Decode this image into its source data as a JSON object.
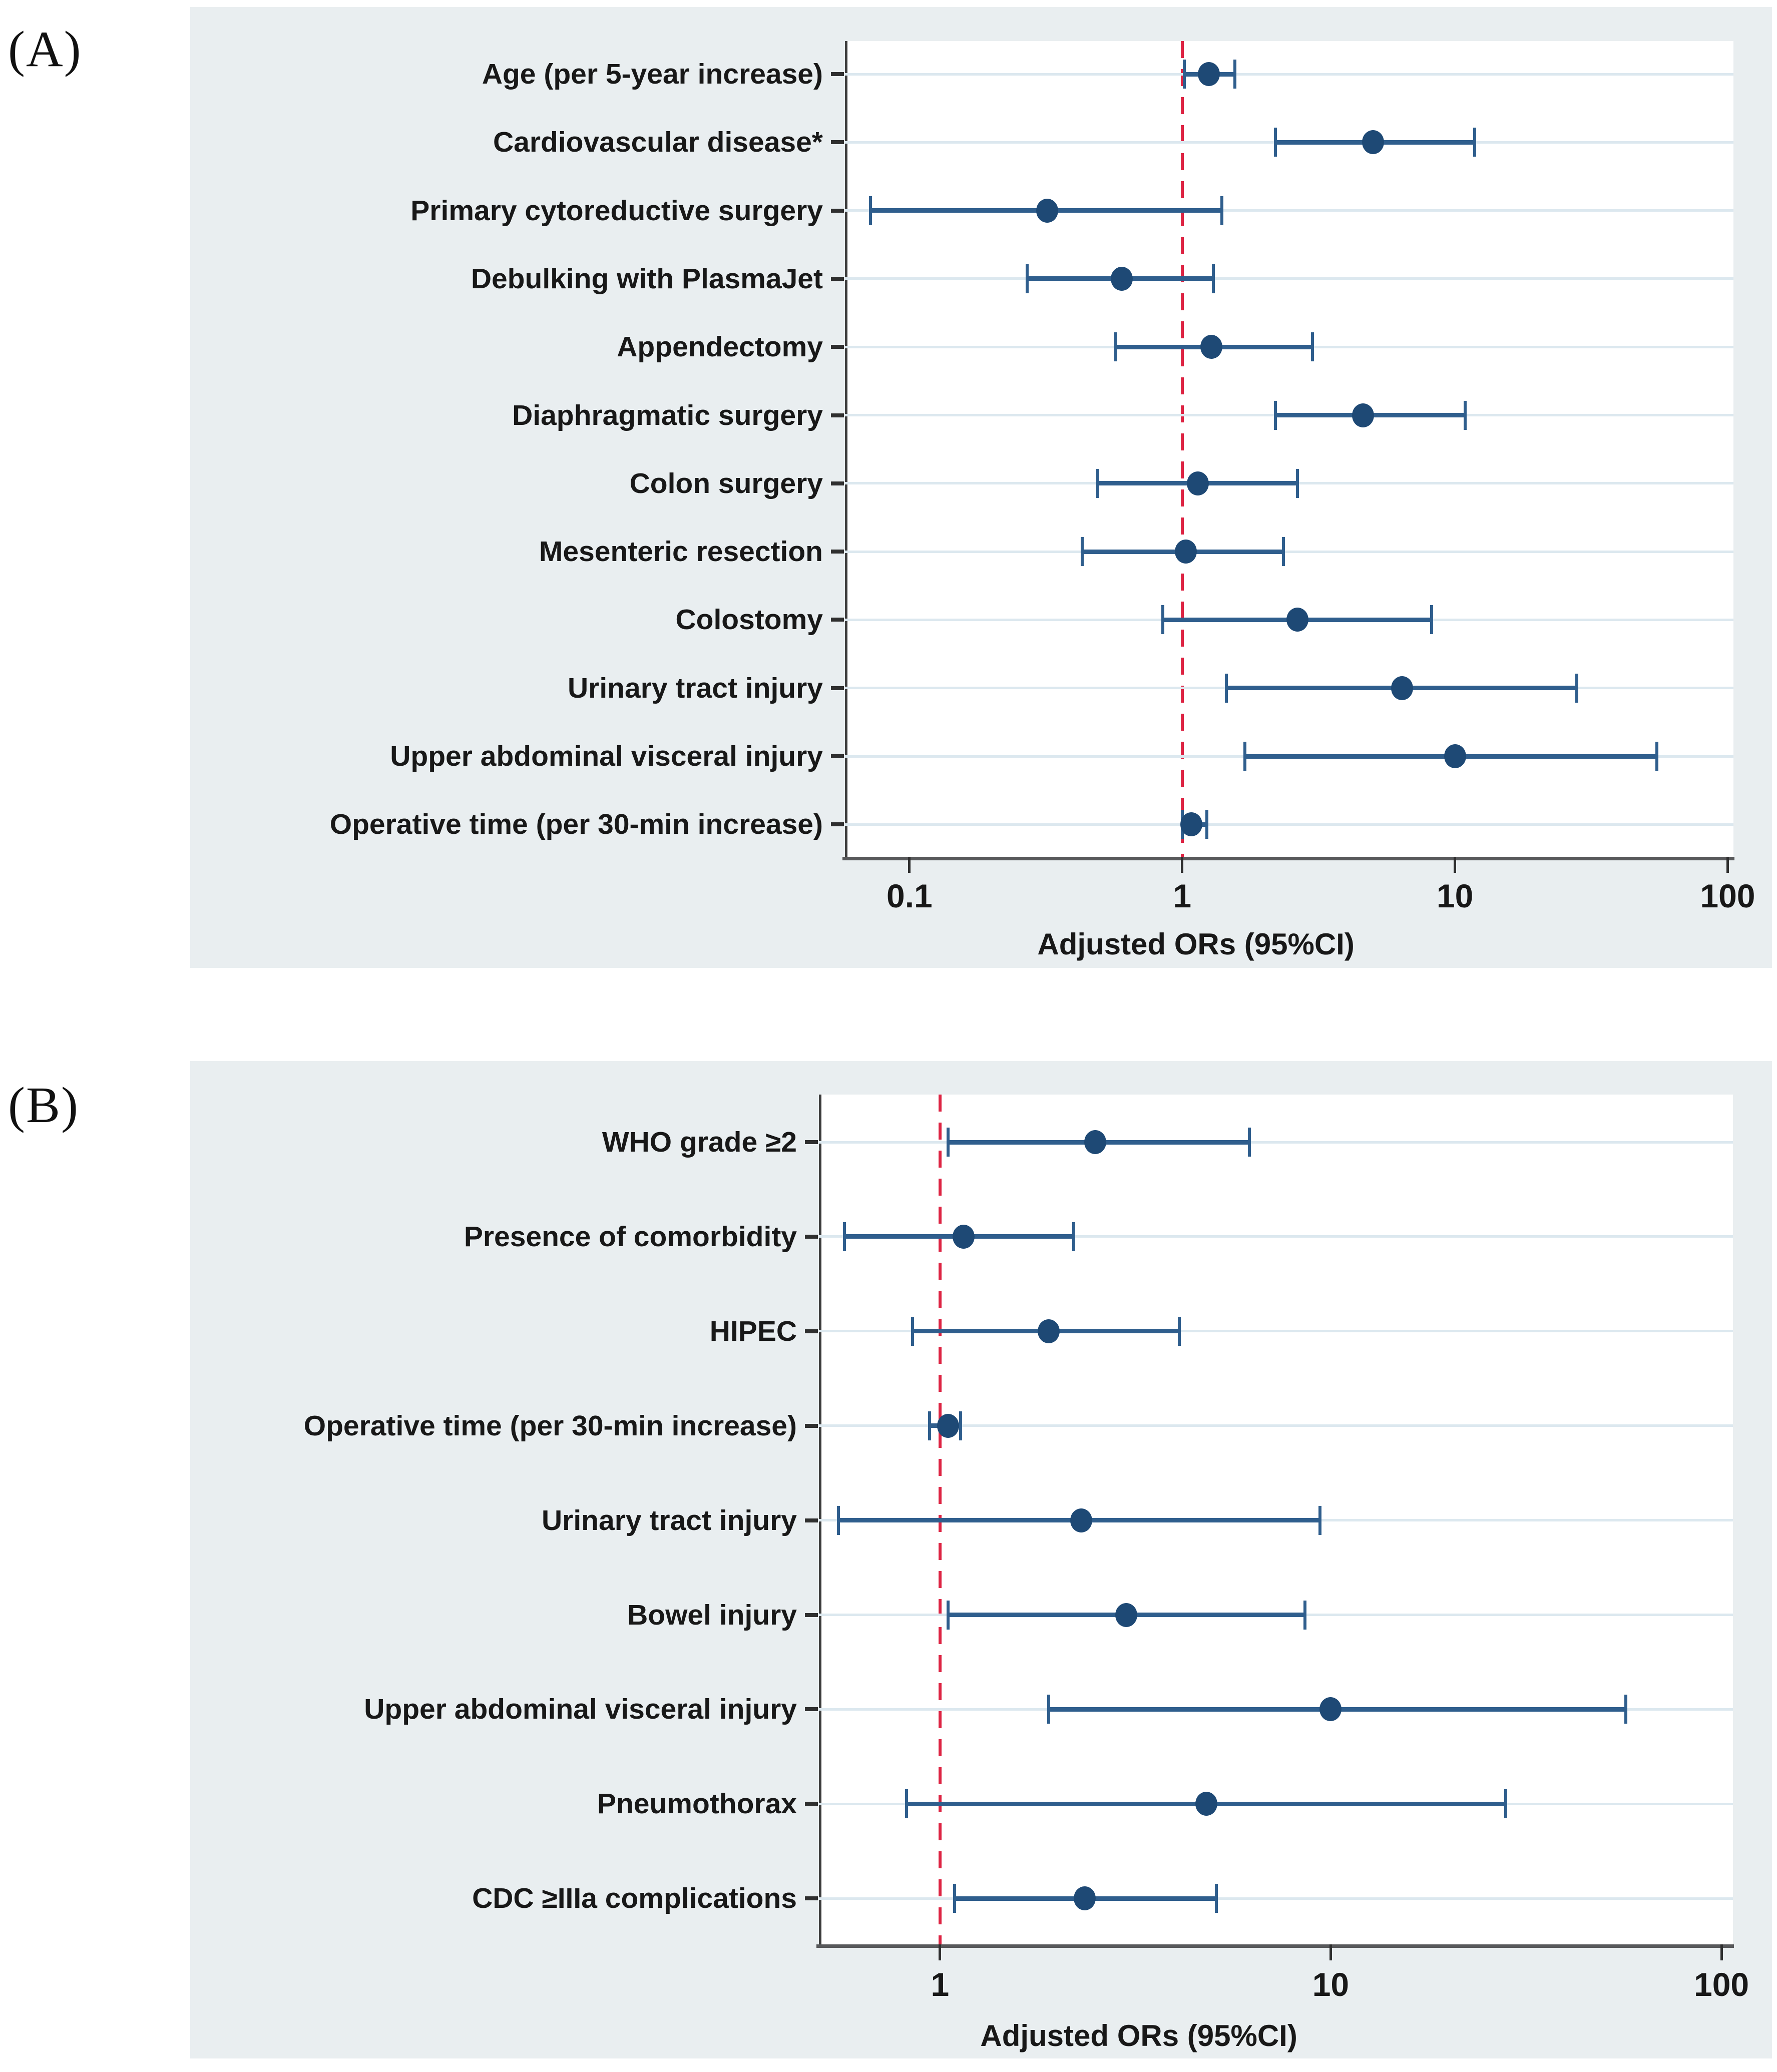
{
  "figure": {
    "panel_a_letter": "(A)",
    "panel_b_letter": "(B)"
  },
  "colors": {
    "panel_background": "#e9eef0",
    "plot_background": "#ffffff",
    "marker": "#1e4975",
    "ci_line": "#2f5e8d",
    "reference_line": "#dd2443",
    "row_guide_line": "#dce8ef",
    "axis_line": "#3d3d3d",
    "text": "#181818"
  },
  "chart_data": [
    {
      "type": "scatter",
      "plot_style": "forest",
      "panel": "A",
      "xlabel": "Adjusted ORs (95%CI)",
      "x_scale": "log",
      "xlim": [
        0.058,
        105
      ],
      "x_ticks": [
        0.1,
        1,
        10,
        100
      ],
      "x_tick_labels": [
        "0.1",
        "1",
        "10",
        "100"
      ],
      "reference_line_x": 1,
      "grid": "row-guides",
      "legend_position": "none",
      "series": [
        {
          "name": "Adjusted OR (95% CI)",
          "points": [
            {
              "label": "Age (per 5-year increase)",
              "or": 1.25,
              "ci_low": 1.02,
              "ci_high": 1.56
            },
            {
              "label": "Cardiovascular disease*",
              "or": 5.0,
              "ci_low": 2.2,
              "ci_high": 11.8
            },
            {
              "label": "Primary cytoreductive surgery",
              "or": 0.32,
              "ci_low": 0.072,
              "ci_high": 1.4
            },
            {
              "label": "Debulking with PlasmaJet",
              "or": 0.6,
              "ci_low": 0.27,
              "ci_high": 1.3
            },
            {
              "label": "Appendectomy",
              "or": 1.28,
              "ci_low": 0.57,
              "ci_high": 3.0
            },
            {
              "label": "Diaphragmatic surgery",
              "or": 4.6,
              "ci_low": 2.2,
              "ci_high": 10.9
            },
            {
              "label": "Colon surgery",
              "or": 1.14,
              "ci_low": 0.49,
              "ci_high": 2.65
            },
            {
              "label": "Mesenteric resection",
              "or": 1.03,
              "ci_low": 0.43,
              "ci_high": 2.35
            },
            {
              "label": "Colostomy",
              "or": 2.65,
              "ci_low": 0.85,
              "ci_high": 8.2
            },
            {
              "label": "Urinary tract injury",
              "or": 6.4,
              "ci_low": 1.45,
              "ci_high": 28
            },
            {
              "label": "Upper abdominal visceral injury",
              "or": 10.0,
              "ci_low": 1.7,
              "ci_high": 55
            },
            {
              "label": "Operative time (per 30-min increase)",
              "or": 1.08,
              "ci_low": 1.0,
              "ci_high": 1.23
            }
          ]
        }
      ]
    },
    {
      "type": "scatter",
      "plot_style": "forest",
      "panel": "B",
      "xlabel": "Adjusted ORs (95%CI)",
      "x_scale": "log",
      "xlim": [
        0.49,
        107
      ],
      "x_ticks": [
        1,
        10,
        100
      ],
      "x_tick_labels": [
        "1",
        "10",
        "100"
      ],
      "reference_line_x": 1,
      "grid": "row-guides",
      "legend_position": "none",
      "series": [
        {
          "name": "Adjusted OR (95% CI)",
          "points": [
            {
              "label": "WHO grade ≥2",
              "or": 2.5,
              "ci_low": 1.05,
              "ci_high": 6.2
            },
            {
              "label": "Presence of comorbidity",
              "or": 1.15,
              "ci_low": 0.57,
              "ci_high": 2.2
            },
            {
              "label": "HIPEC",
              "or": 1.9,
              "ci_low": 0.85,
              "ci_high": 4.1
            },
            {
              "label": "Operative time (per 30-min increase)",
              "or": 1.05,
              "ci_low": 0.94,
              "ci_high": 1.13
            },
            {
              "label": "Urinary tract injury",
              "or": 2.3,
              "ci_low": 0.55,
              "ci_high": 9.4
            },
            {
              "label": "Bowel injury",
              "or": 3.0,
              "ci_low": 1.05,
              "ci_high": 8.6
            },
            {
              "label": "Upper abdominal visceral injury",
              "or": 10.0,
              "ci_low": 1.9,
              "ci_high": 57
            },
            {
              "label": "Pneumothorax",
              "or": 4.8,
              "ci_low": 0.82,
              "ci_high": 28
            },
            {
              "label": "CDC ≥IIIa complications",
              "or": 2.35,
              "ci_low": 1.09,
              "ci_high": 5.1
            }
          ]
        }
      ]
    }
  ]
}
